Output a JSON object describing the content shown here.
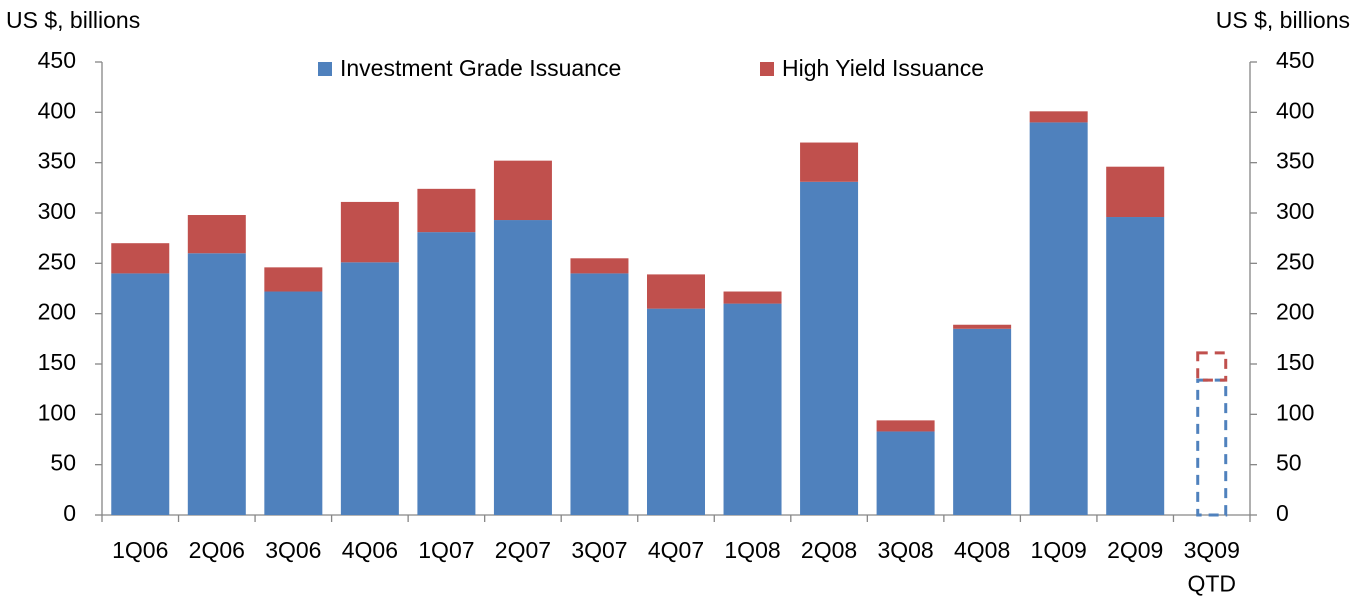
{
  "chart_data": {
    "type": "stacked_bar",
    "y_label": "US $, billions",
    "y2_label": "US $, billions",
    "categories": [
      "1Q06",
      "2Q06",
      "3Q06",
      "4Q06",
      "1Q07",
      "2Q07",
      "3Q07",
      "4Q07",
      "1Q08",
      "2Q08",
      "3Q08",
      "4Q08",
      "1Q09",
      "2Q09",
      "3Q09\nQTD"
    ],
    "series": [
      {
        "name": "Investment Grade Issuance",
        "color": "#4f81bd",
        "values": [
          240,
          260,
          222,
          251,
          281,
          293,
          240,
          205,
          210,
          331,
          83,
          185,
          390,
          296,
          134
        ]
      },
      {
        "name": "High Yield Issuance",
        "color": "#c0504d",
        "values": [
          30,
          38,
          24,
          60,
          43,
          59,
          15,
          34,
          12,
          39,
          11,
          4,
          11,
          50,
          27
        ]
      }
    ],
    "dashed": [
      14
    ],
    "ylim": [
      0,
      450
    ],
    "yticks": [
      0,
      50,
      100,
      150,
      200,
      250,
      300,
      350,
      400,
      450
    ],
    "y2lim": [
      0,
      450
    ],
    "y2ticks": [
      0,
      50,
      100,
      150,
      200,
      250,
      300,
      350,
      400,
      450
    ],
    "legend": "top"
  }
}
